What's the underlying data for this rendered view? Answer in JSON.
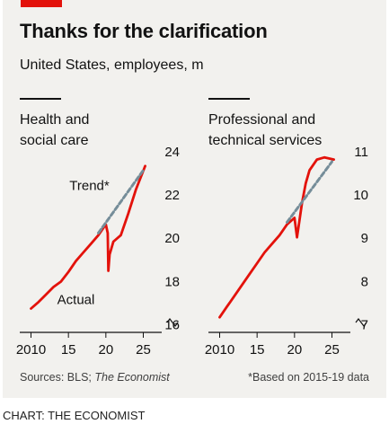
{
  "header": {
    "title": "Thanks for the clarification",
    "subtitle": "United States, employees, m"
  },
  "footer": {
    "sources_prefix": "Sources: BLS; ",
    "sources_publication": "The Economist",
    "footnote": "*Based on 2015-19 data"
  },
  "credit": "CHART: THE ECONOMIST",
  "colors": {
    "actual": "#e3120b",
    "trend": "#758d99",
    "accent": "#e3120b",
    "background": "#f2f1ee"
  },
  "chart_data": [
    {
      "type": "line",
      "title_lines": [
        "Health and",
        "social care"
      ],
      "ylim": [
        15.6,
        24
      ],
      "yticks": [
        16,
        18,
        20,
        22,
        24
      ],
      "xlim": [
        2008.5,
        2026.5
      ],
      "xticks": [
        2010,
        2015,
        2020,
        2025
      ],
      "xtick_labels": [
        "2010",
        "15",
        "20",
        "25"
      ],
      "axis_break": true,
      "grid": false,
      "series": [
        {
          "name": "Actual",
          "style": "solid",
          "x": [
            2010,
            2011,
            2012,
            2013,
            2014,
            2015,
            2016,
            2017,
            2018,
            2019,
            2020,
            2020.25,
            2020.33,
            2020.5,
            2021,
            2022,
            2023,
            2024,
            2025.25
          ],
          "y": [
            16.7,
            17.0,
            17.35,
            17.7,
            17.95,
            18.4,
            18.9,
            19.3,
            19.7,
            20.1,
            20.6,
            20.2,
            18.45,
            19.2,
            19.8,
            20.1,
            21.1,
            22.2,
            23.3
          ]
        },
        {
          "name": "Trend*",
          "style": "dashed",
          "x": [
            2019,
            2025
          ],
          "y": [
            20.2,
            23.1
          ]
        }
      ],
      "annotations": [
        {
          "text": "Trend*",
          "x": 2017.8,
          "y": 22.2
        },
        {
          "text": "Actual",
          "x": 2016.0,
          "y": 16.9
        }
      ]
    },
    {
      "type": "line",
      "title_lines": [
        "Professional and",
        "technical services"
      ],
      "ylim": [
        6.8,
        11
      ],
      "yticks": [
        7,
        8,
        9,
        10,
        11
      ],
      "xlim": [
        2008.5,
        2026.5
      ],
      "xticks": [
        2010,
        2015,
        2020,
        2025
      ],
      "xtick_labels": [
        "2010",
        "15",
        "20",
        "25"
      ],
      "axis_break": true,
      "grid": false,
      "series": [
        {
          "name": "",
          "style": "solid",
          "x": [
            2010,
            2011,
            2012,
            2013,
            2014,
            2015,
            2016,
            2017,
            2018,
            2019,
            2020,
            2020.33,
            2020.67,
            2021,
            2021.5,
            2022,
            2023,
            2024,
            2025.25
          ],
          "y": [
            7.15,
            7.4,
            7.65,
            7.9,
            8.15,
            8.4,
            8.65,
            8.85,
            9.05,
            9.3,
            9.45,
            9.0,
            9.4,
            9.8,
            10.25,
            10.55,
            10.8,
            10.85,
            10.8
          ]
        },
        {
          "name": "",
          "style": "dashed",
          "x": [
            2019,
            2025
          ],
          "y": [
            9.35,
            10.75
          ]
        }
      ]
    }
  ]
}
